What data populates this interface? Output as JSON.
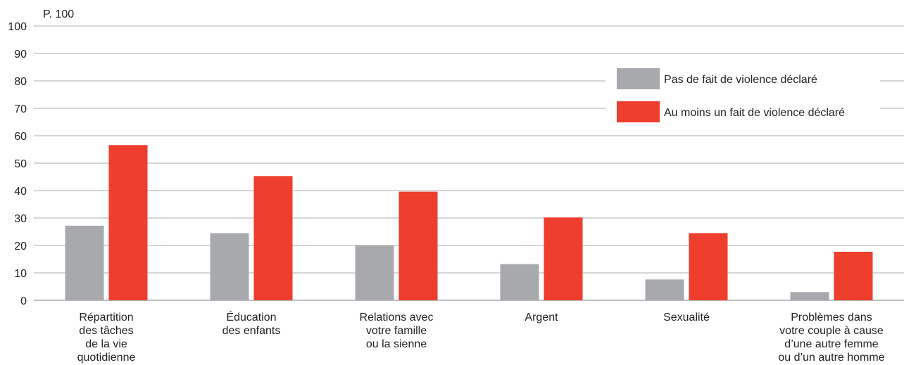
{
  "chart_data": {
    "type": "bar",
    "unit_label": "P. 100",
    "ylim": [
      0,
      100
    ],
    "yticks": [
      0,
      10,
      20,
      30,
      40,
      50,
      60,
      70,
      80,
      90,
      100
    ],
    "grid": true,
    "legend_position": "top-right",
    "categories": [
      [
        "Répartition",
        "des tâches",
        "de la vie",
        "quotidienne"
      ],
      [
        "Éducation",
        "des enfants"
      ],
      [
        "Relations avec",
        "votre famille",
        "ou la sienne"
      ],
      [
        "Argent"
      ],
      [
        "Sexualité"
      ],
      [
        "Problèmes dans",
        "votre couple à cause",
        "d’une autre femme",
        "ou d’un autre homme"
      ]
    ],
    "series": [
      {
        "name": "Pas de fait de violence déclaré",
        "color": "#a7a9ac",
        "values": [
          27.2,
          24.5,
          20.0,
          13.2,
          7.6,
          3.0
        ]
      },
      {
        "name": "Au moins un fait de violence déclaré",
        "color": "#ee3e2d",
        "values": [
          56.6,
          45.3,
          39.6,
          30.2,
          24.5,
          17.7
        ]
      }
    ]
  }
}
